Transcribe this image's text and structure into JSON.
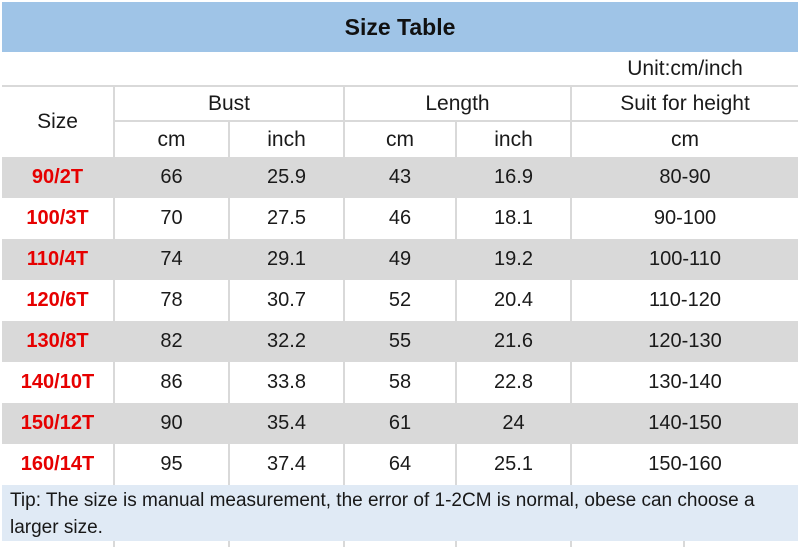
{
  "chart_data": {
    "type": "table",
    "title": "Size Table",
    "unit_label": "Unit:cm/inch",
    "column_groups": [
      {
        "label": "Size",
        "sub": []
      },
      {
        "label": "Bust",
        "sub": [
          "cm",
          "inch"
        ]
      },
      {
        "label": "Length",
        "sub": [
          "cm",
          "inch"
        ]
      },
      {
        "label": "Suit for height",
        "sub": [
          "cm"
        ]
      }
    ],
    "rows": [
      {
        "size": "90/2T",
        "bust_cm": "66",
        "bust_inch": "25.9",
        "length_cm": "43",
        "length_inch": "16.9",
        "suit_height_cm": "80-90"
      },
      {
        "size": "100/3T",
        "bust_cm": "70",
        "bust_inch": "27.5",
        "length_cm": "46",
        "length_inch": "18.1",
        "suit_height_cm": "90-100"
      },
      {
        "size": "110/4T",
        "bust_cm": "74",
        "bust_inch": "29.1",
        "length_cm": "49",
        "length_inch": "19.2",
        "suit_height_cm": "100-110"
      },
      {
        "size": "120/6T",
        "bust_cm": "78",
        "bust_inch": "30.7",
        "length_cm": "52",
        "length_inch": "20.4",
        "suit_height_cm": "110-120"
      },
      {
        "size": "130/8T",
        "bust_cm": "82",
        "bust_inch": "32.2",
        "length_cm": "55",
        "length_inch": "21.6",
        "suit_height_cm": "120-130"
      },
      {
        "size": "140/10T",
        "bust_cm": "86",
        "bust_inch": "33.8",
        "length_cm": "58",
        "length_inch": "22.8",
        "suit_height_cm": "130-140"
      },
      {
        "size": "150/12T",
        "bust_cm": "90",
        "bust_inch": "35.4",
        "length_cm": "61",
        "length_inch": "24",
        "suit_height_cm": "140-150"
      },
      {
        "size": "160/14T",
        "bust_cm": "95",
        "bust_inch": "37.4",
        "length_cm": "64",
        "length_inch": "25.1",
        "suit_height_cm": "150-160"
      }
    ],
    "tip": "Tip: The size is manual measurement, the error of 1-2CM is normal, obese can choose a larger size."
  },
  "colors": {
    "title_bg": "#9FC4E7",
    "row_alt_bg": "#D9D9D9",
    "grid_line": "#D9D9D9",
    "tip_bg": "#E0EAF5",
    "size_red": "#E60000"
  }
}
